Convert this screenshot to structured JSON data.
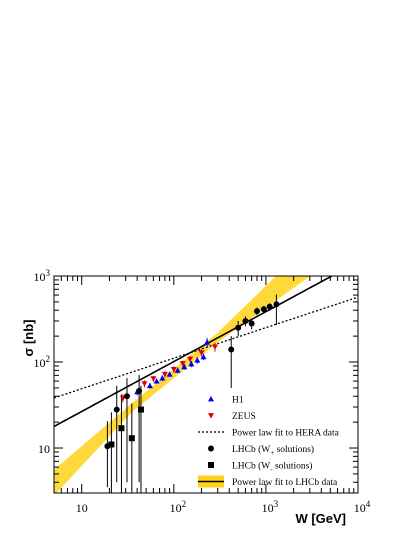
{
  "chart_data": {
    "type": "scatter",
    "title": "",
    "xlabel": "W [GeV]",
    "ylabel": "σ [nb]",
    "xscale": "log",
    "yscale": "log",
    "xlim": [
      5,
      10000
    ],
    "ylim": [
      3,
      1000
    ],
    "x_ticks": [
      {
        "value": 10,
        "base": "10",
        "exp": ""
      },
      {
        "value": 100,
        "base": "10",
        "exp": "2"
      },
      {
        "value": 1000,
        "base": "10",
        "exp": "3"
      },
      {
        "value": 10000,
        "base": "10",
        "exp": "4"
      }
    ],
    "y_ticks": [
      {
        "value": 10,
        "base": "10",
        "exp": ""
      },
      {
        "value": 100,
        "base": "10",
        "exp": "2"
      },
      {
        "value": 1000,
        "base": "10",
        "exp": "3"
      }
    ],
    "legend_position": "bottom-right",
    "legend": [
      {
        "key": "h1",
        "label": "H1",
        "marker": "triangle-up",
        "color": "#0000ee"
      },
      {
        "key": "zeus",
        "label": "ZEUS",
        "marker": "triangle-down",
        "color": "#dd0000"
      },
      {
        "key": "hera_fit",
        "label": "Power law fit to HERA data",
        "marker": "dotted-line",
        "color": "#000000"
      },
      {
        "key": "lhcb_wplus",
        "label": "LHCb (W",
        "sub": "+",
        "label_suffix": " solutions)",
        "marker": "circle",
        "color": "#000000"
      },
      {
        "key": "lhcb_wminus",
        "label": "LHCb (W",
        "sub": "-",
        "label_suffix": " solutions)",
        "marker": "square",
        "color": "#000000"
      },
      {
        "key": "lhcb_fit",
        "label": "Power law fit to LHCb data",
        "marker": "line-band",
        "color": "#000000",
        "band_color": "#ffd21a"
      }
    ],
    "series": [
      {
        "name": "H1",
        "marker": "triangle-up",
        "color": "#0000ee",
        "points": [
          {
            "x": 40,
            "y": 45,
            "err": 4
          },
          {
            "x": 55,
            "y": 53,
            "err": 4
          },
          {
            "x": 65,
            "y": 60,
            "err": 4
          },
          {
            "x": 75,
            "y": 65,
            "err": 5
          },
          {
            "x": 90,
            "y": 72,
            "err": 5
          },
          {
            "x": 110,
            "y": 80,
            "err": 6
          },
          {
            "x": 130,
            "y": 88,
            "err": 7
          },
          {
            "x": 155,
            "y": 95,
            "err": 8
          },
          {
            "x": 180,
            "y": 105,
            "err": 9
          },
          {
            "x": 210,
            "y": 115,
            "err": 10
          },
          {
            "x": 230,
            "y": 170,
            "err": 20
          }
        ]
      },
      {
        "name": "ZEUS",
        "marker": "triangle-down",
        "color": "#dd0000",
        "points": [
          {
            "x": 28,
            "y": 38,
            "err": 4
          },
          {
            "x": 48,
            "y": 56,
            "err": 5
          },
          {
            "x": 60,
            "y": 64,
            "err": 5
          },
          {
            "x": 80,
            "y": 72,
            "err": 6
          },
          {
            "x": 100,
            "y": 82,
            "err": 7
          },
          {
            "x": 125,
            "y": 96,
            "err": 8
          },
          {
            "x": 150,
            "y": 108,
            "err": 9
          },
          {
            "x": 200,
            "y": 128,
            "err": 12
          },
          {
            "x": 280,
            "y": 150,
            "err": 18
          }
        ]
      },
      {
        "name": "LHCb (W+ solutions)",
        "marker": "circle",
        "color": "#000000",
        "points": [
          {
            "x": 19,
            "y": 10.5,
            "err_lo": 7,
            "err_hi": 10
          },
          {
            "x": 24,
            "y": 28,
            "err_lo": 24,
            "err_hi": 25
          },
          {
            "x": 31,
            "y": 40,
            "err_lo": 36,
            "err_hi": 25
          },
          {
            "x": 42,
            "y": 46,
            "err_lo": 42,
            "err_hi": 25
          },
          {
            "x": 420,
            "y": 140,
            "err_lo": 90,
            "err_hi": 60
          },
          {
            "x": 500,
            "y": 250,
            "err_lo": 50,
            "err_hi": 50
          },
          {
            "x": 600,
            "y": 300,
            "err_lo": 40,
            "err_hi": 40
          },
          {
            "x": 700,
            "y": 280,
            "err_lo": 40,
            "err_hi": 40
          },
          {
            "x": 800,
            "y": 390,
            "err_lo": 40,
            "err_hi": 40
          },
          {
            "x": 950,
            "y": 410,
            "err_lo": 40,
            "err_hi": 40
          },
          {
            "x": 1100,
            "y": 440,
            "err_lo": 40,
            "err_hi": 40
          },
          {
            "x": 1300,
            "y": 470,
            "err_lo": 200,
            "err_hi": 140
          }
        ]
      },
      {
        "name": "LHCb (W- solutions)",
        "marker": "square",
        "color": "#000000",
        "points": [
          {
            "x": 21,
            "y": 11,
            "err_lo": 8,
            "err_hi": 15
          },
          {
            "x": 27,
            "y": 17,
            "err_lo": 14,
            "err_hi": 25
          },
          {
            "x": 35,
            "y": 13,
            "err_lo": 10,
            "err_hi": 20
          },
          {
            "x": 44,
            "y": 28,
            "err_lo": 25,
            "err_hi": 25
          }
        ]
      }
    ],
    "fits": [
      {
        "name": "Power law fit to HERA data",
        "style": "dotted",
        "x_range": [
          5,
          10000
        ],
        "a": 21.6,
        "b": 0.355
      },
      {
        "name": "Power law fit to LHCb data",
        "style": "solid",
        "x_range": [
          5,
          10000
        ],
        "a": 7.0,
        "b": 0.58,
        "band": [
          {
            "x": 5,
            "lo": 2.8,
            "hi": 5.6
          },
          {
            "x": 35,
            "lo": 26,
            "hi": 33
          },
          {
            "x": 300,
            "lo": 170,
            "hi": 220
          },
          {
            "x": 10000,
            "lo": 2500,
            "hi": 8500
          }
        ]
      }
    ]
  }
}
